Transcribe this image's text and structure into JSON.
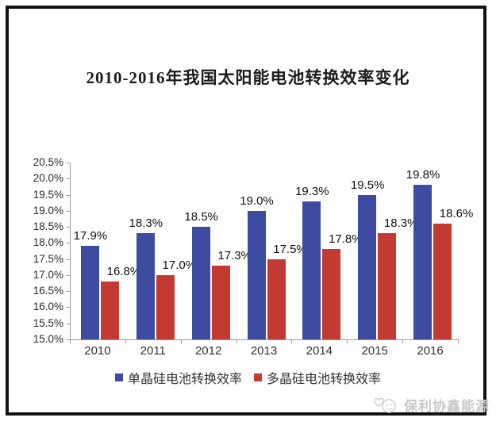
{
  "chart_data": {
    "type": "bar",
    "title": "2010-2016年我国太阳能电池转换效率变化",
    "categories": [
      "2010",
      "2011",
      "2012",
      "2013",
      "2014",
      "2015",
      "2016"
    ],
    "series": [
      {
        "name": "单晶硅电池转换效率",
        "color": "#3d4ba0",
        "values": [
          17.9,
          18.3,
          18.5,
          19.0,
          19.3,
          19.5,
          19.8
        ],
        "value_labels": [
          "17.9%",
          "18.3%",
          "18.5%",
          "19.0%",
          "19.3%",
          "19.5%",
          "19.8%"
        ]
      },
      {
        "name": "多晶硅电池转换效率",
        "color": "#c23a31",
        "values": [
          16.8,
          17.0,
          17.3,
          17.5,
          17.8,
          18.3,
          18.6
        ],
        "value_labels": [
          "16.8%",
          "17.0%",
          "17.3%",
          "17.5%",
          "17.8%",
          "18.3%",
          "18.6%"
        ]
      }
    ],
    "xlabel": "",
    "ylabel": "",
    "ylim": [
      15.0,
      20.5
    ],
    "ytick_step": 0.5,
    "ytick_labels": [
      "20.5%",
      "20.0%",
      "19.5%",
      "19.0%",
      "18.5%",
      "18.0%",
      "17.5%",
      "17.0%",
      "16.5%",
      "16.0%",
      "15.5%",
      "15.0%"
    ],
    "grid": false,
    "legend_position": "bottom"
  },
  "watermark": {
    "text": "保利协鑫能源",
    "logo": "gcl-mascot-logo",
    "color": "#c9c9c9"
  },
  "colors": {
    "axis": "#9c9c9c",
    "frame": "#121212",
    "background": "#ffffff",
    "label_text": "#121212"
  }
}
